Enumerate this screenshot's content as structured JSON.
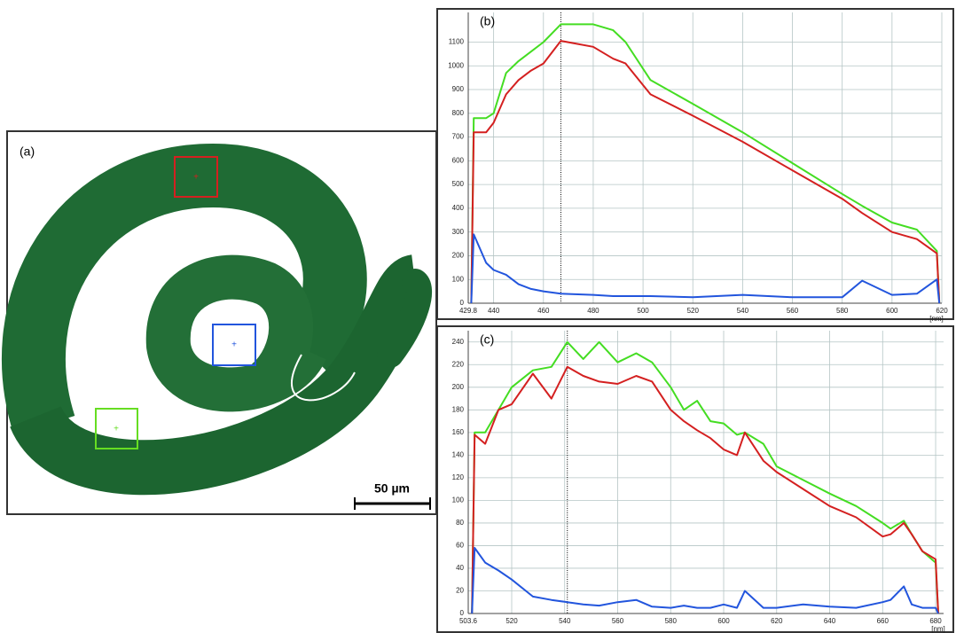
{
  "image_panel": {
    "label": "(a)",
    "scale_bar": "50 µm"
  },
  "chart_data": [
    {
      "type": "line",
      "label": "(b)",
      "x_label": "[nm]",
      "x": [
        431,
        432,
        437,
        440,
        445,
        450,
        455,
        460,
        467,
        480,
        488,
        493,
        503,
        520,
        540,
        560,
        580,
        588,
        600,
        610,
        618,
        619
      ],
      "series": [
        {
          "color": "#44dd22",
          "values": [
            0,
            780,
            780,
            800,
            970,
            1020,
            1060,
            1100,
            1175,
            1175,
            1150,
            1100,
            940,
            840,
            720,
            590,
            460,
            410,
            340,
            310,
            220,
            0
          ]
        },
        {
          "color": "#d42020",
          "values": [
            0,
            720,
            720,
            760,
            880,
            940,
            980,
            1010,
            1105,
            1080,
            1030,
            1010,
            880,
            790,
            680,
            560,
            440,
            380,
            300,
            270,
            210,
            0
          ]
        },
        {
          "color": "#2255dd",
          "values": [
            0,
            290,
            170,
            140,
            120,
            80,
            60,
            50,
            40,
            35,
            30,
            30,
            30,
            25,
            35,
            25,
            25,
            95,
            35,
            40,
            100,
            0
          ]
        }
      ],
      "xlim": [
        429.8,
        620
      ],
      "ylim": [
        0,
        1225
      ],
      "xticks": [
        429.8,
        440,
        460,
        480,
        500,
        520,
        540,
        560,
        580,
        600,
        620
      ],
      "yticks": [
        0,
        100,
        200,
        300,
        400,
        500,
        600,
        700,
        800,
        900,
        1000,
        1100
      ],
      "grid": true,
      "marker_x": 467
    },
    {
      "type": "line",
      "label": "(c)",
      "x_label": "[nm]",
      "x": [
        505,
        506,
        510,
        515,
        520,
        528,
        535,
        541,
        547,
        553,
        560,
        567,
        573,
        580,
        585,
        590,
        595,
        600,
        605,
        608,
        615,
        620,
        630,
        640,
        650,
        660,
        663,
        668,
        671,
        675,
        680,
        681
      ],
      "series": [
        {
          "color": "#44dd22",
          "values": [
            0,
            160,
            160,
            180,
            200,
            215,
            218,
            240,
            225,
            240,
            222,
            230,
            222,
            200,
            180,
            188,
            170,
            168,
            158,
            160,
            150,
            130,
            118,
            106,
            95,
            80,
            75,
            82,
            70,
            55,
            45,
            0
          ]
        },
        {
          "color": "#d42020",
          "values": [
            0,
            158,
            150,
            180,
            185,
            212,
            190,
            218,
            210,
            205,
            203,
            210,
            205,
            180,
            170,
            162,
            155,
            145,
            140,
            160,
            135,
            125,
            110,
            95,
            85,
            68,
            70,
            80,
            70,
            55,
            48,
            0
          ]
        },
        {
          "color": "#2255dd",
          "values": [
            0,
            58,
            45,
            38,
            30,
            15,
            12,
            10,
            8,
            7,
            10,
            12,
            6,
            5,
            7,
            5,
            5,
            8,
            5,
            20,
            5,
            5,
            8,
            6,
            5,
            10,
            12,
            24,
            8,
            5,
            5,
            0
          ]
        }
      ],
      "xlim": [
        503.6,
        683
      ],
      "ylim": [
        0,
        250
      ],
      "xticks": [
        503.6,
        520,
        540,
        560,
        580,
        600,
        620,
        640,
        660,
        680
      ],
      "yticks": [
        0,
        20,
        40,
        60,
        80,
        100,
        120,
        140,
        160,
        180,
        200,
        220,
        240
      ],
      "grid": true,
      "marker_x": 541
    }
  ]
}
